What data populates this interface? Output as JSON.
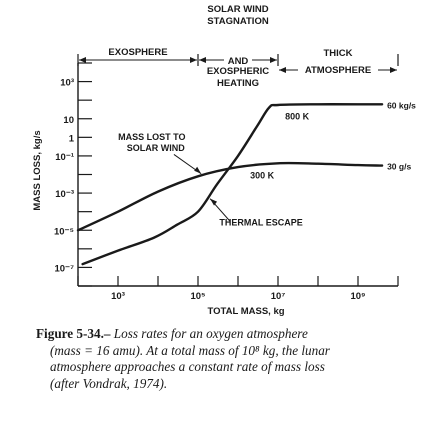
{
  "chart_data": {
    "type": "line",
    "xlabel": "TOTAL MASS, kg",
    "ylabel": "MASS LOSS, kg/s",
    "x_scale": "log",
    "y_scale": "log",
    "xlim": [
      100.0,
      10000000000.0
    ],
    "ylim": [
      1e-08,
      10000.0
    ],
    "x_ticks": [
      {
        "value": 1000.0,
        "label": "10³"
      },
      {
        "value": 100000.0,
        "label": "10⁵"
      },
      {
        "value": 10000000.0,
        "label": "10⁷"
      },
      {
        "value": 1000000000.0,
        "label": "10⁹"
      }
    ],
    "y_ticks": [
      {
        "value": 1000.0,
        "label": "10³"
      },
      {
        "value": 10,
        "label": "10"
      },
      {
        "value": 0.1,
        "label": "10⁻¹"
      },
      {
        "value": 0.001,
        "label": "10⁻³"
      },
      {
        "value": 1e-05,
        "label": "10⁻⁵"
      },
      {
        "value": 1e-07,
        "label": "10⁻⁷"
      }
    ],
    "y_extra_tick_label": {
      "value": 1,
      "label": "1"
    },
    "grid": false,
    "regions": [
      {
        "lines": [
          "EXOSPHERE"
        ],
        "x_start": 100.0,
        "x_end": 100000.0
      },
      {
        "lines": [
          "SOLAR WIND",
          "STAGNATION",
          "AND",
          "EXOSPHERIC",
          "HEATING"
        ],
        "x_start": 100000.0,
        "x_end": 10000000.0
      },
      {
        "lines": [
          "THICK",
          "ATMOSPHERE"
        ],
        "x_start": 10000000.0,
        "x_end": 10000000000.0
      }
    ],
    "series": [
      {
        "name": "THERMAL ESCAPE",
        "end_label": "60 kg/s",
        "temperature_label": "800 K",
        "x": [
          130,
          1000,
          8000,
          30000,
          100000,
          300000,
          1000000,
          3000000,
          6000000,
          10000000,
          100000000,
          1000000000,
          4000000000
        ],
        "y": [
          1.5e-07,
          8e-07,
          4e-06,
          2e-05,
          0.0001,
          0.003,
          0.1,
          4,
          40,
          55,
          60,
          60,
          60
        ]
      },
      {
        "name": "MASS LOST TO SOLAR WIND",
        "end_label": "30 g/s",
        "temperature_label": "300 K",
        "x": [
          100,
          1000,
          10000,
          100000,
          1000000,
          10000000,
          100000000,
          1000000000,
          4000000000
        ],
        "y": [
          1e-05,
          0.0001,
          0.0012,
          0.008,
          0.025,
          0.04,
          0.038,
          0.032,
          0.03
        ]
      }
    ]
  },
  "caption": {
    "number": "Figure 5-34.–",
    "lines": [
      "Loss rates for an oxygen atmosphere",
      "(mass = 16 amu). At a total mass of 10⁸ kg, the lunar",
      "atmosphere approaches a constant rate of mass loss",
      "(after Vondrak, 1974)."
    ]
  }
}
